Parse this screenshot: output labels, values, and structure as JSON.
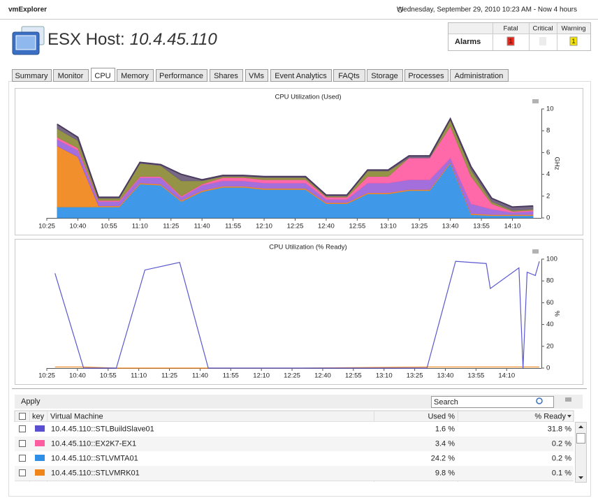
{
  "header": {
    "app": "vmExplorer",
    "timestamp": "Wednesday, September 29, 2010 10:23 AM - Now 4 hours"
  },
  "title": {
    "prefix": "ESX Host:",
    "host": "10.4.45.110"
  },
  "alarms": {
    "label": "Alarms",
    "columns": [
      "Fatal",
      "Critical",
      "Warning"
    ],
    "values": [
      1,
      null,
      1
    ]
  },
  "tabs": [
    "Summary",
    "Monitor",
    "CPU",
    "Memory",
    "Performance",
    "Shares",
    "VMs",
    "Event Analytics",
    "FAQts",
    "Storage",
    "Processes",
    "Administration"
  ],
  "chart_data": [
    {
      "type": "area",
      "stacked": true,
      "title": "CPU Utilization (Used)",
      "y_label": "GHz",
      "y_axis_side": "right",
      "grid": false,
      "x": [
        "10:30",
        "10:40",
        "10:50",
        "11:00",
        "11:10",
        "11:20",
        "11:30",
        "11:40",
        "11:50",
        "12:00",
        "12:10",
        "12:20",
        "12:30",
        "12:40",
        "12:50",
        "13:00",
        "13:10",
        "13:20",
        "13:30",
        "13:40",
        "13:50",
        "14:00",
        "14:10",
        "14:20"
      ],
      "xlim": [
        "10:25",
        "14:24"
      ],
      "xticks": [
        "10:25",
        "10:40",
        "10:55",
        "11:10",
        "11:25",
        "11:40",
        "11:55",
        "12:10",
        "12:25",
        "12:40",
        "12:55",
        "13:10",
        "13:25",
        "13:40",
        "13:55",
        "14:10"
      ],
      "ylim": [
        0,
        10
      ],
      "yticks": [
        0,
        2,
        4,
        6,
        8,
        10
      ],
      "series": [
        {
          "color": "#2f8fe6",
          "values": [
            1.0,
            1.0,
            1.0,
            1.0,
            3.1,
            3.0,
            1.5,
            2.4,
            2.8,
            2.8,
            2.6,
            2.6,
            2.6,
            1.3,
            1.3,
            2.2,
            2.2,
            2.5,
            2.5,
            5.0,
            0.3,
            0.2,
            0.2,
            0.2
          ]
        },
        {
          "color": "#f0861a",
          "values": [
            5.6,
            4.6,
            0.1,
            0.1,
            0.1,
            0.1,
            0.1,
            0.1,
            0.1,
            0.1,
            0.1,
            0.1,
            0.1,
            0.1,
            0.1,
            0.1,
            0.1,
            0.1,
            0.1,
            0.1,
            0.1,
            0.1,
            0.1,
            0.1
          ]
        },
        {
          "color": "#9b63d9",
          "values": [
            0.6,
            0.6,
            0.4,
            0.4,
            0.5,
            0.6,
            0.3,
            0.5,
            0.5,
            0.5,
            0.5,
            0.5,
            0.5,
            0.3,
            0.3,
            0.9,
            0.9,
            0.9,
            0.9,
            0.4,
            0.9,
            0.5,
            0.2,
            0.3
          ]
        },
        {
          "color": "#ff5ca2",
          "values": [
            0.2,
            0.2,
            0.1,
            0.1,
            0.1,
            0.1,
            0.1,
            0.1,
            0.3,
            0.3,
            0.3,
            0.3,
            0.3,
            0.2,
            0.2,
            0.6,
            0.6,
            2.0,
            2.0,
            2.9,
            2.5,
            0.5,
            0.1,
            0.1
          ]
        },
        {
          "color": "#8c8a36",
          "values": [
            0.8,
            0.7,
            0.2,
            0.2,
            1.2,
            1.0,
            1.4,
            0.3,
            0.1,
            0.1,
            0.2,
            0.2,
            0.2,
            0.1,
            0.1,
            0.5,
            0.5,
            0.0,
            0.0,
            0.6,
            0.6,
            0.2,
            0.1,
            0.1
          ]
        },
        {
          "color": "#6b5b7c",
          "values": [
            0.4,
            0.3,
            0.1,
            0.1,
            0.1,
            0.1,
            0.6,
            0.1,
            0.1,
            0.1,
            0.1,
            0.1,
            0.1,
            0.1,
            0.1,
            0.1,
            0.1,
            0.2,
            0.2,
            0.1,
            0.3,
            0.3,
            0.3,
            0.3
          ]
        }
      ]
    },
    {
      "type": "line",
      "title": "CPU Utilization (% Ready)",
      "y_label": "%",
      "y_axis_side": "right",
      "grid": false,
      "x": [
        "10:29",
        "10:43",
        "10:59",
        "11:13",
        "11:30",
        "11:44",
        "12:30",
        "13:31",
        "13:45",
        "14:00",
        "14:02",
        "14:16",
        "14:18",
        "14:20",
        "14:24",
        "14:26"
      ],
      "xlim": [
        "10:25",
        "14:27"
      ],
      "xticks": [
        "10:25",
        "10:40",
        "10:55",
        "11:10",
        "11:25",
        "11:40",
        "11:55",
        "12:10",
        "12:25",
        "12:40",
        "12:55",
        "13:10",
        "13:25",
        "13:40",
        "13:55",
        "14:10"
      ],
      "ylim": [
        0,
        100
      ],
      "yticks": [
        0,
        20,
        40,
        60,
        80,
        100
      ],
      "series": [
        {
          "color": "#f0861a",
          "values": [
            1,
            1,
            0,
            0,
            0,
            0,
            0,
            1,
            1,
            1,
            1,
            1,
            1,
            1,
            1,
            1
          ]
        },
        {
          "color": "#5b58cf",
          "values": [
            87,
            0,
            0,
            90,
            97,
            0,
            0,
            0,
            98,
            96,
            73,
            92,
            0,
            88,
            85,
            98
          ]
        }
      ]
    }
  ],
  "table": {
    "toolbar": {
      "apply": "Apply",
      "search_placeholder": "Search"
    },
    "columns": [
      "key",
      "Virtual Machine",
      "Used %",
      "% Ready"
    ],
    "rows": [
      {
        "color": "#5a4fd0",
        "name": "10.4.45.110::STLBuildSlave01",
        "used": "1.6 %",
        "ready": "31.8 %"
      },
      {
        "color": "#ff5ca2",
        "name": "10.4.45.110::EX2K7-EX1",
        "used": "3.4 %",
        "ready": "0.2 %"
      },
      {
        "color": "#2f8fe6",
        "name": "10.4.45.110::STLVMTA01",
        "used": "24.2 %",
        "ready": "0.2 %"
      },
      {
        "color": "#f0861a",
        "name": "10.4.45.110::STLVMRK01",
        "used": "9.8 %",
        "ready": "0.1 %"
      }
    ]
  }
}
